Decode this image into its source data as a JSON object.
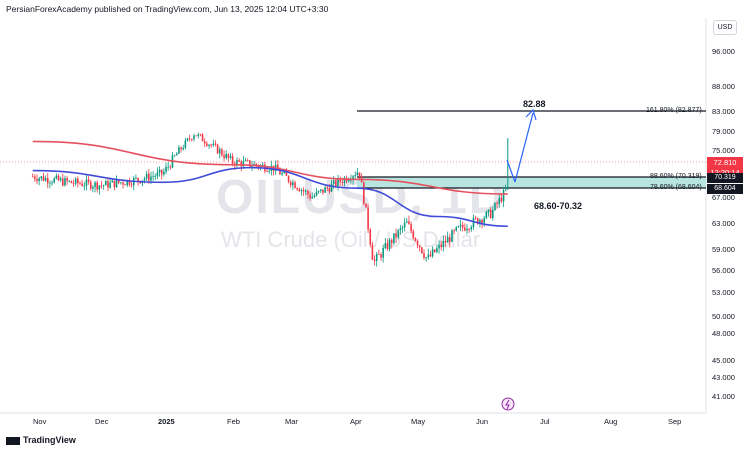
{
  "header": {
    "text": "PersianForexAcademy published on TradingView.com, Jun 13, 2025 12:04 UTC+3:30"
  },
  "currency_label": "USD",
  "watermark": {
    "symbol": "OILUSD, 1D",
    "description": "WTI Crude (Oil / US Dollar"
  },
  "price_tag": {
    "value": "72.810",
    "countdown": "12:20:14"
  },
  "fib_tags": [
    "70.319",
    "68.604"
  ],
  "annotations": {
    "target": "82.88",
    "zone": "68.60-70.32"
  },
  "fib_levels": [
    {
      "label": "161.80% (82.877)",
      "value": 82.877
    },
    {
      "label": "88.60% (70.319)",
      "value": 70.319
    },
    {
      "label": "78.60% (68.604)",
      "value": 68.604
    }
  ],
  "footer": {
    "logo_text": "TradingView"
  },
  "colors": {
    "up_candle": "#089981",
    "down_candle": "#f23645",
    "ma_red": "#e65160",
    "ma_blue": "#3f4bd8",
    "zone_fill": "#b9e5e0",
    "arrow": "#2962ff"
  },
  "chart_data": {
    "type": "candlestick",
    "symbol": "OILUSD",
    "interval": "1D",
    "x_tick_labels": [
      "Nov",
      "Dec",
      "2025",
      "Feb",
      "Mar",
      "Apr",
      "May",
      "Jun",
      "Jul",
      "Aug",
      "Sep"
    ],
    "y_tick_labels": [
      "96.000",
      "88.000",
      "83.000",
      "79.000",
      "75.000",
      "67.000",
      "63.000",
      "59.000",
      "56.000",
      "53.000",
      "50.000",
      "48.000",
      "45.000",
      "43.000",
      "41.000"
    ],
    "ylim": [
      39.5,
      100
    ],
    "last_price": 72.81,
    "approx_close_path": [
      {
        "date": "Oct 29",
        "close": 70.5
      },
      {
        "date": "Nov 15",
        "close": 69.5
      },
      {
        "date": "Dec 1",
        "close": 69.0
      },
      {
        "date": "Dec 20",
        "close": 70.0
      },
      {
        "date": "Jan 1",
        "close": 71.0
      },
      {
        "date": "Jan 15",
        "close": 78.5
      },
      {
        "date": "Feb 1",
        "close": 73.0
      },
      {
        "date": "Feb 20",
        "close": 72.0
      },
      {
        "date": "Mar 10",
        "close": 67.0
      },
      {
        "date": "Apr 2",
        "close": 71.5
      },
      {
        "date": "Apr 9",
        "close": 57.0
      },
      {
        "date": "Apr 25",
        "close": 63.0
      },
      {
        "date": "May 5",
        "close": 57.5
      },
      {
        "date": "May 20",
        "close": 62.0
      },
      {
        "date": "Jun 5",
        "close": 64.5
      },
      {
        "date": "Jun 12",
        "close": 68.0
      },
      {
        "date": "Jun 13",
        "close": 72.81
      }
    ],
    "moving_averages": [
      {
        "color": "red",
        "approx_values": [
          {
            "date": "Oct 29",
            "value": 76.8
          },
          {
            "date": "Feb 1",
            "value": 72.5
          },
          {
            "date": "Apr 1",
            "value": 70.0
          },
          {
            "date": "Jun 13",
            "value": 67.5
          }
        ]
      },
      {
        "color": "blue",
        "approx_values": [
          {
            "date": "Oct 29",
            "value": 71.5
          },
          {
            "date": "Jan 1",
            "value": 69.5
          },
          {
            "date": "Feb 10",
            "value": 72.0
          },
          {
            "date": "Apr 1",
            "value": 68.5
          },
          {
            "date": "May 10",
            "value": 64.0
          },
          {
            "date": "Jun 13",
            "value": 62.5
          }
        ]
      }
    ]
  }
}
